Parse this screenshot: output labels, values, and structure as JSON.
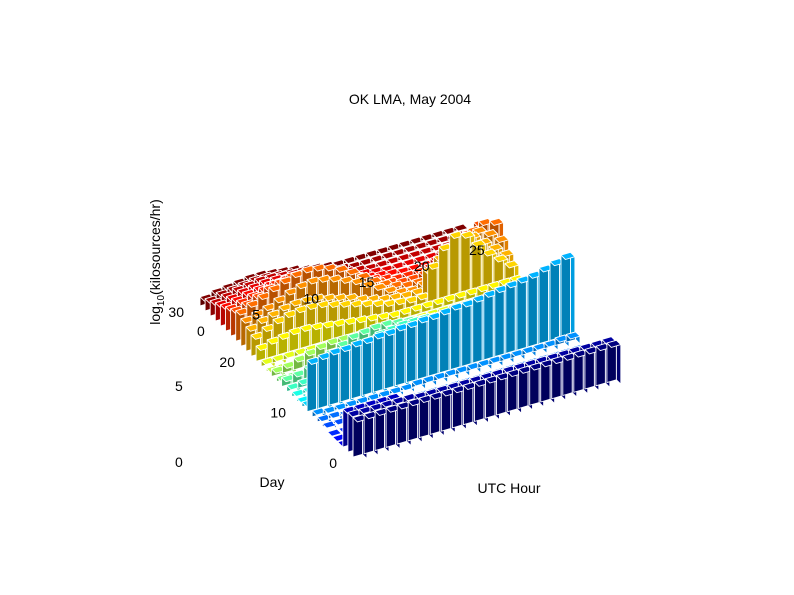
{
  "chart_data": {
    "type": "bar3d",
    "title": "OK LMA, May 2004",
    "xlabel": "UTC Hour",
    "ylabel": "Day",
    "zlabel_base": "log",
    "zlabel_sub": "10",
    "zlabel_rest": "(kilosources/hr)",
    "xlim": [
      0,
      25
    ],
    "ylim": [
      0,
      31
    ],
    "zlim": [
      0,
      5
    ],
    "x_ticks": [
      0,
      5,
      10,
      15,
      20,
      25
    ],
    "y_ticks": [
      0,
      10,
      20,
      30
    ],
    "z_ticks": [
      0,
      5
    ],
    "colormap": "jet",
    "colormap_by": "day",
    "grid": false,
    "hours": [
      0,
      1,
      2,
      3,
      4,
      5,
      6,
      7,
      8,
      9,
      10,
      11,
      12,
      13,
      14,
      15,
      16,
      17,
      18,
      19,
      20,
      21,
      22,
      23
    ],
    "days": [
      1,
      2,
      3,
      4,
      5,
      6,
      7,
      8,
      9,
      10,
      11,
      12,
      13,
      14,
      15,
      16,
      17,
      18,
      19,
      20,
      21,
      22,
      23,
      24,
      25,
      26,
      27,
      28,
      29,
      30,
      31
    ],
    "series": [
      {
        "day": 1,
        "values": [
          2.6,
          2.6,
          2.6,
          2.6,
          2.6,
          2.6,
          2.6,
          2.6,
          2.6,
          2.6,
          2.6,
          2.6,
          2.6,
          2.6,
          2.6,
          2.6,
          2.6,
          2.6,
          2.6,
          2.6,
          2.6,
          2.6,
          2.6,
          2.6
        ]
      },
      {
        "day": 2,
        "values": [
          2.6,
          2.6,
          2.6,
          2.6,
          2.6,
          2.6,
          2.5,
          2.5,
          2.5,
          2.5,
          2.5,
          2.5,
          2.5,
          2.5,
          2.5,
          2.5,
          2.5,
          2.5,
          2.5,
          2.5,
          2.5,
          2.5,
          2.5,
          2.5
        ]
      },
      {
        "day": 3,
        "values": [
          2.5,
          2.5,
          2.5,
          2.5,
          2.5,
          0,
          0,
          0,
          0,
          0,
          0,
          0,
          0,
          0,
          0,
          0,
          0,
          0,
          0,
          0,
          0,
          0,
          0,
          0
        ]
      },
      {
        "day": 4,
        "values": [
          0,
          0,
          0,
          0,
          0,
          0,
          0,
          0,
          0,
          0,
          0,
          0,
          0,
          0,
          0,
          0,
          0,
          0,
          0,
          0,
          0,
          0,
          0,
          0
        ]
      },
      {
        "day": 5,
        "values": [
          0,
          0,
          0,
          0,
          0,
          0,
          0,
          0,
          0,
          0,
          0,
          0,
          0,
          0,
          0,
          0,
          0,
          0,
          0,
          0,
          0,
          0,
          0,
          0
        ]
      },
      {
        "day": 6,
        "values": [
          0,
          0,
          0,
          0,
          0,
          0,
          0,
          0,
          0,
          0,
          0,
          0,
          0,
          0,
          0,
          0,
          0,
          0,
          0,
          0,
          0,
          0,
          0,
          0
        ]
      },
      {
        "day": 7,
        "values": [
          0.2,
          0.2,
          0,
          0,
          0,
          0,
          0,
          0,
          0,
          0,
          0,
          0,
          0,
          0,
          0,
          0,
          0,
          0,
          0,
          0,
          0,
          0,
          0,
          0
        ]
      },
      {
        "day": 8,
        "values": [
          0.3,
          0.3,
          0.2,
          0,
          0,
          0,
          0,
          0,
          0,
          0,
          0,
          0,
          0,
          0,
          0,
          0,
          0,
          0,
          0,
          0,
          0,
          0,
          0,
          0
        ]
      },
      {
        "day": 9,
        "values": [
          0.4,
          0.3,
          0.3,
          0.3,
          0.3,
          0.3,
          0.3,
          0.3,
          0.3,
          0.4,
          0.4,
          0.4,
          0.4,
          0.4,
          0.4,
          0.4,
          0.4,
          0.4,
          0.4,
          0.4,
          0.4,
          0.4,
          0.5,
          0.5
        ]
      },
      {
        "day": 10,
        "values": [
          3.4,
          3.5,
          3.6,
          3.6,
          3.7,
          3.7,
          3.8,
          3.8,
          3.9,
          3.9,
          4.0,
          4.0,
          4.1,
          4.2,
          4.2,
          4.3,
          4.4,
          4.5,
          4.6,
          4.7,
          4.8,
          5.0,
          5.2,
          5.4
        ]
      },
      {
        "day": 11,
        "values": [
          0.3,
          0.3,
          0.3,
          0.3,
          0.3,
          0.3,
          0.3,
          0.3,
          0.3,
          0.3,
          0.3,
          0.3,
          0.3,
          0.3,
          0.3,
          0.3,
          0.3,
          0.3,
          0.3,
          0.3,
          0.3,
          0.3,
          0.3,
          0.3
        ]
      },
      {
        "day": 12,
        "values": [
          0.2,
          0.2,
          0.2,
          0.2,
          0.2,
          0.2,
          0.2,
          0.2,
          0.2,
          0.2,
          0.2,
          0.2,
          0.2,
          0.2,
          0.2,
          0.2,
          0.2,
          0.2,
          0.2,
          0.2,
          0.2,
          0.2,
          0.2,
          0.2
        ]
      },
      {
        "day": 13,
        "values": [
          0.3,
          0.3,
          0.3,
          0.3,
          0.3,
          0.3,
          0.3,
          0.3,
          0.3,
          0.3,
          0.3,
          0.3,
          0.3,
          0.3,
          0.3,
          0.3,
          0.3,
          0.3,
          0.3,
          0.3,
          0.3,
          0.3,
          0.3,
          0.3
        ]
      },
      {
        "day": 14,
        "values": [
          0.4,
          0.5,
          0.6,
          0.8,
          1.0,
          1.4,
          1.8,
          2.0,
          2.2,
          2.3,
          2.4,
          2.4,
          2.4,
          2.3,
          2.2,
          2.0,
          1.8,
          1.6,
          1.5,
          1.4,
          1.4,
          1.3,
          1.2,
          1.0
        ]
      },
      {
        "day": 15,
        "values": [
          0.6,
          0.7,
          0.9,
          1.2,
          1.5,
          1.8,
          2.1,
          2.2,
          2.3,
          2.3,
          2.2,
          2.1,
          2.0,
          1.9,
          1.8,
          1.7,
          1.6,
          1.5,
          1.4,
          1.3,
          1.2,
          1.1,
          1.0,
          0.8
        ]
      },
      {
        "day": 16,
        "values": [
          0.3,
          0.3,
          0.3,
          0.3,
          0.3,
          0.3,
          0.3,
          0.3,
          0.3,
          0.3,
          0.3,
          0.3,
          0.3,
          0.3,
          0.3,
          0.3,
          0.3,
          0.3,
          0.3,
          0.3,
          0.3,
          0.3,
          0.3,
          0.3
        ]
      },
      {
        "day": 17,
        "values": [
          0.5,
          0.6,
          0.8,
          1.0,
          1.2,
          1.3,
          1.3,
          1.2,
          1.1,
          1.0,
          0.9,
          0.8,
          0.7,
          0.6,
          0.5,
          0.5,
          0.5,
          0.5,
          0.5,
          0.5,
          0.5,
          0.5,
          0.5,
          0.4
        ]
      },
      {
        "day": 18,
        "values": [
          0.2,
          0.2,
          0.2,
          0.2,
          0.2,
          0.2,
          0.2,
          0.2,
          0.2,
          0.2,
          0.2,
          0.2,
          0.2,
          0.2,
          0.2,
          0.2,
          0.2,
          0.2,
          0.2,
          0.2,
          0.2,
          0.2,
          0.2,
          0.2
        ]
      },
      {
        "day": 19,
        "values": [
          0.4,
          0.4,
          0.4,
          0.4,
          0.4,
          0.4,
          0.4,
          0.4,
          0.4,
          0.4,
          0.4,
          0.4,
          0.4,
          0.4,
          0.4,
          0.4,
          0.4,
          0.4,
          0.4,
          0.4,
          0.4,
          0.4,
          0.4,
          0.4
        ]
      },
      {
        "day": 20,
        "values": [
          1.0,
          1.2,
          1.3,
          1.4,
          1.4,
          1.3,
          1.2,
          1.1,
          1.0,
          0.9,
          0.8,
          0.7,
          0.6,
          0.6,
          0.6,
          0.6,
          0.6,
          0.6,
          0.6,
          0.6,
          0.6,
          0.6,
          0.6,
          0.6
        ]
      },
      {
        "day": 21,
        "values": [
          1.4,
          1.7,
          2.0,
          2.2,
          2.3,
          2.3,
          2.2,
          2.0,
          1.8,
          1.6,
          1.4,
          1.2,
          1.0,
          0.9,
          0.8,
          0.8,
          2.6,
          3.6,
          4.2,
          4.0,
          3.2,
          2.4,
          1.8,
          1.2
        ]
      },
      {
        "day": 22,
        "values": [
          1.6,
          1.9,
          2.1,
          2.3,
          2.4,
          2.4,
          2.3,
          2.1,
          1.9,
          1.7,
          1.4,
          1.2,
          1.0,
          0.9,
          0.8,
          0.8,
          2.0,
          2.6,
          3.2,
          3.6,
          3.4,
          2.8,
          2.2,
          1.6
        ]
      },
      {
        "day": 23,
        "values": [
          1.8,
          2.0,
          2.2,
          2.5,
          2.8,
          3.0,
          3.1,
          3.0,
          2.8,
          2.5,
          2.2,
          1.8,
          1.4,
          1.0,
          0.7,
          0.6,
          0.8,
          1.4,
          2.0,
          2.6,
          3.0,
          3.2,
          2.8,
          2.2
        ]
      },
      {
        "day": 24,
        "values": [
          2.0,
          2.3,
          2.6,
          2.9,
          3.2,
          3.4,
          3.5,
          3.4,
          3.2,
          2.9,
          2.5,
          2.0,
          1.5,
          1.1,
          0.8,
          0.6,
          0.6,
          0.8,
          1.2,
          1.8,
          2.4,
          2.9,
          3.2,
          3.0
        ]
      },
      {
        "day": 25,
        "values": [
          1.8,
          2.0,
          2.3,
          2.6,
          2.8,
          3.0,
          3.0,
          2.9,
          2.7,
          2.4,
          2.0,
          1.6,
          1.2,
          0.9,
          0.7,
          0.5,
          0.5,
          0.6,
          0.8,
          1.2,
          1.8,
          2.4,
          2.8,
          2.6
        ]
      },
      {
        "day": 26,
        "values": [
          1.6,
          1.8,
          2.0,
          2.2,
          2.4,
          2.5,
          2.5,
          2.4,
          2.2,
          2.0,
          1.7,
          1.3,
          1.0,
          0.8,
          0.6,
          0.4,
          0.4,
          0.4,
          0.5,
          0.7,
          1.0,
          1.4,
          1.8,
          1.6
        ]
      },
      {
        "day": 27,
        "values": [
          1.4,
          1.6,
          1.8,
          1.9,
          2.0,
          2.0,
          1.9,
          1.8,
          1.6,
          1.4,
          1.2,
          1.0,
          0.8,
          0.6,
          0.5,
          0.4,
          0.3,
          0.3,
          0.3,
          0.4,
          0.5,
          0.6,
          0.7,
          0.6
        ]
      },
      {
        "day": 28,
        "values": [
          1.2,
          1.4,
          1.6,
          1.7,
          1.8,
          1.8,
          1.7,
          1.6,
          1.4,
          1.2,
          1.0,
          0.8,
          0.6,
          0.5,
          0.4,
          0.3,
          0.3,
          0.3,
          0.3,
          0.3,
          0.3,
          0.3,
          0.3,
          0.3
        ]
      },
      {
        "day": 29,
        "values": [
          1.0,
          1.2,
          1.4,
          1.5,
          1.6,
          1.6,
          1.5,
          1.4,
          1.2,
          1.0,
          0.8,
          0.6,
          0.5,
          0.4,
          0.3,
          0.3,
          0.3,
          0.3,
          0.3,
          0.3,
          0.3,
          0.3,
          0.3,
          0.3
        ]
      },
      {
        "day": 30,
        "values": [
          0.8,
          1.0,
          1.1,
          1.2,
          1.3,
          1.3,
          1.2,
          1.1,
          1.0,
          0.8,
          0.6,
          0.5,
          0.4,
          0.3,
          0.3,
          0.3,
          0.3,
          0.3,
          0.3,
          0.3,
          0.3,
          0.3,
          0.3,
          0.3
        ]
      },
      {
        "day": 31,
        "values": [
          0.6,
          0.8,
          0.9,
          1.0,
          1.1,
          1.1,
          1.0,
          0.9,
          0.8,
          0.6,
          0.5,
          0.4,
          0.3,
          0.3,
          0.3,
          0.3,
          0.3,
          0.3,
          0.3,
          0.3,
          0.3,
          0.3,
          0.3,
          0.3
        ]
      }
    ]
  }
}
